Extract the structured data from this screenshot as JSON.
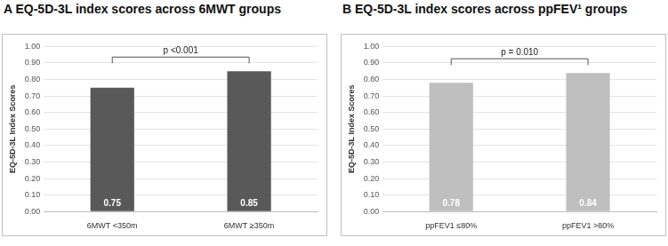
{
  "chart_data": [
    {
      "type": "bar",
      "title": "A EQ-5D-3L index scores across 6MWT groups",
      "categories": [
        "6MWT <350m",
        "6MWT ≥350m"
      ],
      "values": [
        0.75,
        0.85
      ],
      "color": "#595959",
      "y_label": "EQ-5D-3L Index Scores",
      "ylim": [
        0,
        1
      ],
      "yticks": [
        {
          "value": 0,
          "label": "0.00"
        },
        {
          "value": 0.1,
          "label": "0.10"
        },
        {
          "value": 0.2,
          "label": "0.20"
        },
        {
          "value": 0.3,
          "label": "0.30"
        },
        {
          "value": 0.4,
          "label": "0.40"
        },
        {
          "value": 0.5,
          "label": "0.50"
        },
        {
          "value": 0.6,
          "label": "0.60"
        },
        {
          "value": 0.7,
          "label": "0.70"
        },
        {
          "value": 0.8,
          "label": "0.80"
        },
        {
          "value": 0.9,
          "label": "0.90"
        },
        {
          "value": 1,
          "label": "1.00"
        }
      ],
      "grid": true,
      "data_labels": true,
      "annotations": [
        "p <0.001"
      ]
    },
    {
      "type": "bar",
      "title": "B EQ-5D-3L index scores across ppFEV¹ groups",
      "categories": [
        "ppFEV1 ≤80%",
        "ppFEV1 >80%"
      ],
      "values": [
        0.78,
        0.84
      ],
      "color": "#bfbfbf",
      "y_label": "EQ-5D-3L Index Scores",
      "ylim": [
        0,
        1
      ],
      "yticks": [
        {
          "value": 0,
          "label": "0.00"
        },
        {
          "value": 0.1,
          "label": "0.10"
        },
        {
          "value": 0.2,
          "label": "0.20"
        },
        {
          "value": 0.3,
          "label": "0.30"
        },
        {
          "value": 0.4,
          "label": "0.40"
        },
        {
          "value": 0.5,
          "label": "0.50"
        },
        {
          "value": 0.6,
          "label": "0.60"
        },
        {
          "value": 0.7,
          "label": "0.70"
        },
        {
          "value": 0.8,
          "label": "0.80"
        },
        {
          "value": 0.9,
          "label": "0.90"
        },
        {
          "value": 1,
          "label": "1.00"
        }
      ],
      "grid": true,
      "data_labels": true,
      "annotations": [
        "p = 0.010"
      ]
    }
  ]
}
